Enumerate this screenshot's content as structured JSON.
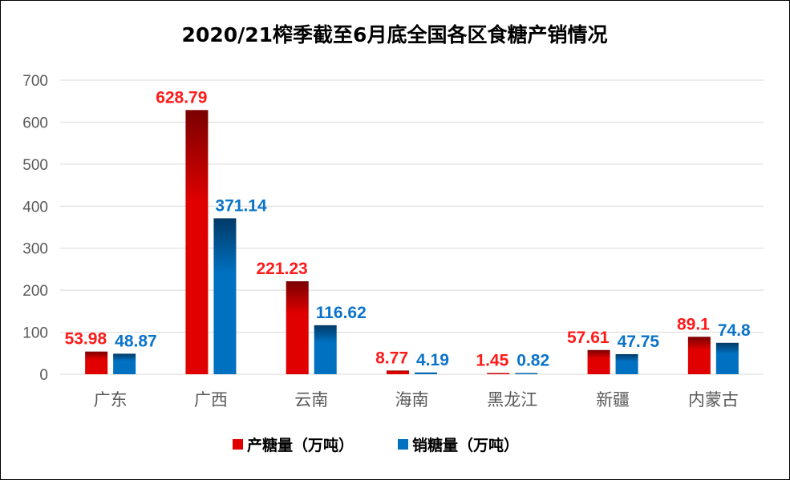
{
  "chart_data": {
    "type": "bar",
    "title": "2020/21榨季截至6月底全国各区食糖产销情况",
    "categories": [
      "广东",
      "广西",
      "云南",
      "海南",
      "黑龙江",
      "新疆",
      "内蒙古"
    ],
    "series": [
      {
        "name": "产糖量（万吨）",
        "values": [
          53.98,
          628.79,
          221.23,
          8.77,
          1.45,
          57.61,
          89.1
        ],
        "labels": [
          "53.98",
          "628.79",
          "221.23",
          "8.77",
          "1.45",
          "57.61",
          "89.1"
        ],
        "color": "#e00000",
        "color_dark": "#7a0000",
        "label_color": "#ff1a1a"
      },
      {
        "name": "销糖量（万吨）",
        "values": [
          48.87,
          371.14,
          116.62,
          4.19,
          0.82,
          47.75,
          74.8
        ],
        "labels": [
          "48.87",
          "371.14",
          "116.62",
          "4.19",
          "0.82",
          "47.75",
          "74.8"
        ],
        "color": "#0070c0",
        "color_dark": "#003a66",
        "label_color": "#0a73c9"
      }
    ],
    "ylim": [
      0,
      700
    ],
    "yticks": [
      0,
      100,
      200,
      300,
      400,
      500,
      600,
      700
    ],
    "grid": true,
    "legend": "bottom"
  }
}
